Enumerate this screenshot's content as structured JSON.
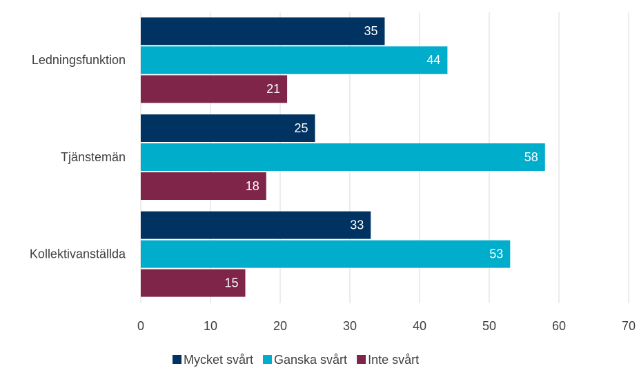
{
  "chart_data": {
    "type": "bar",
    "orientation": "horizontal",
    "categories": [
      "Ledningsfunktion",
      "Tjänstemän",
      "Kollektivanställda"
    ],
    "series": [
      {
        "name": "Mycket svårt",
        "color": "#003361",
        "values": [
          35,
          25,
          33
        ]
      },
      {
        "name": "Ganska svårt",
        "color": "#00adcb",
        "values": [
          44,
          58,
          53
        ]
      },
      {
        "name": "Inte svårt",
        "color": "#7f2549",
        "values": [
          21,
          18,
          15
        ]
      }
    ],
    "xlim": [
      0,
      70
    ],
    "xticks": [
      0,
      10,
      20,
      30,
      40,
      50,
      60,
      70
    ],
    "grid": true,
    "legend": "bottom"
  }
}
